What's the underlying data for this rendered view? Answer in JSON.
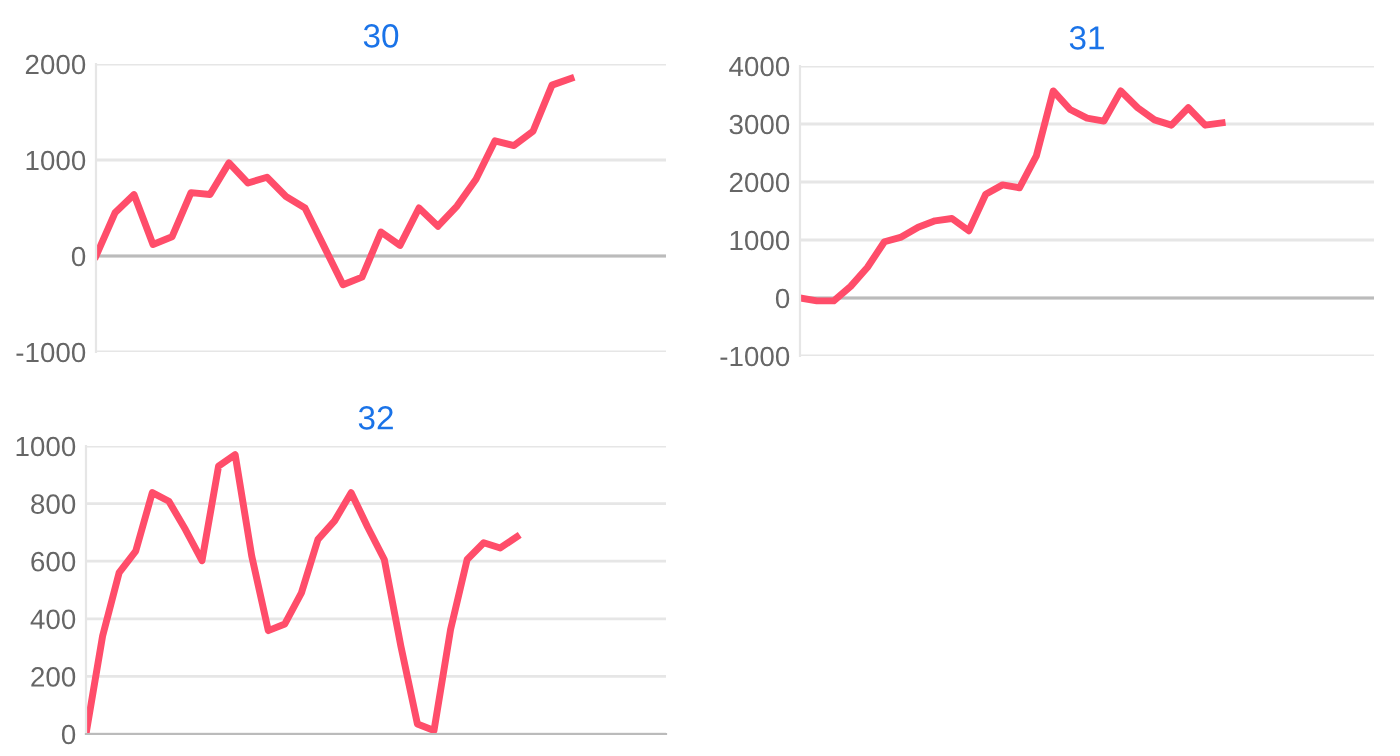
{
  "chart_data": [
    {
      "type": "line",
      "title": "30",
      "categories": [
        null,
        null,
        null,
        null,
        null,
        null,
        null,
        null,
        null,
        null,
        null,
        null,
        null,
        null,
        null,
        null,
        null,
        null,
        null,
        null,
        null,
        null,
        null,
        null,
        null,
        null,
        null,
        null,
        null,
        null,
        null
      ],
      "series": [
        {
          "color": "#ff4d6a",
          "values": [
            0,
            450,
            640,
            120,
            200,
            660,
            640,
            970,
            760,
            820,
            620,
            500,
            100,
            -300,
            -220,
            250,
            110,
            500,
            310,
            520,
            800,
            1200,
            1150,
            1300,
            1780,
            1850,
            null,
            null,
            null,
            null,
            null
          ]
        }
      ],
      "ylim": [
        -1000,
        2000
      ],
      "yticks": [
        -1000,
        0,
        1000,
        2000
      ],
      "grid": "y",
      "tick_labels": "y",
      "marker": "none",
      "line_style": "solid",
      "legend": false
    },
    {
      "type": "line",
      "title": "31",
      "categories": [
        null,
        null,
        null,
        null,
        null,
        null,
        null,
        null,
        null,
        null,
        null,
        null,
        null,
        null,
        null,
        null,
        null,
        null,
        null,
        null,
        null,
        null,
        null,
        null,
        null,
        null,
        null,
        null,
        null,
        null,
        null,
        null,
        null,
        null,
        null
      ],
      "series": [
        {
          "color": "#ff4d6a",
          "values": [
            0,
            -50,
            -50,
            200,
            530,
            970,
            1050,
            1220,
            1330,
            1370,
            1160,
            1790,
            1950,
            1900,
            2450,
            3570,
            3250,
            3100,
            3050,
            3570,
            3280,
            3070,
            2980,
            3280,
            2980,
            3020,
            null,
            null,
            null,
            null,
            null,
            null,
            null,
            null,
            null
          ]
        }
      ],
      "ylim": [
        -1000,
        4000
      ],
      "yticks": [
        -1000,
        0,
        1000,
        2000,
        3000,
        4000
      ],
      "grid": "y",
      "tick_labels": "y",
      "marker": "none",
      "line_style": "solid",
      "legend": false
    },
    {
      "type": "line",
      "title": "32",
      "categories": [
        null,
        null,
        null,
        null,
        null,
        null,
        null,
        null,
        null,
        null,
        null,
        null,
        null,
        null,
        null,
        null,
        null,
        null,
        null,
        null,
        null,
        null,
        null,
        null,
        null,
        null,
        null,
        null,
        null,
        null,
        null,
        null,
        null,
        null,
        null,
        null
      ],
      "series": [
        {
          "color": "#ff4d6a",
          "values": [
            0,
            340,
            560,
            635,
            838,
            808,
            710,
            602,
            930,
            970,
            618,
            359,
            382,
            490,
            676,
            740,
            838,
            718,
            606,
            305,
            35,
            12,
            363,
            606,
            664,
            646,
            685,
            null,
            null,
            null,
            null,
            null,
            null,
            null,
            null,
            null
          ]
        }
      ],
      "ylim": [
        0,
        1000
      ],
      "yticks": [
        0,
        200,
        400,
        600,
        800,
        1000
      ],
      "grid": "y",
      "tick_labels": "y",
      "marker": "none",
      "line_style": "solid",
      "legend": false
    }
  ]
}
